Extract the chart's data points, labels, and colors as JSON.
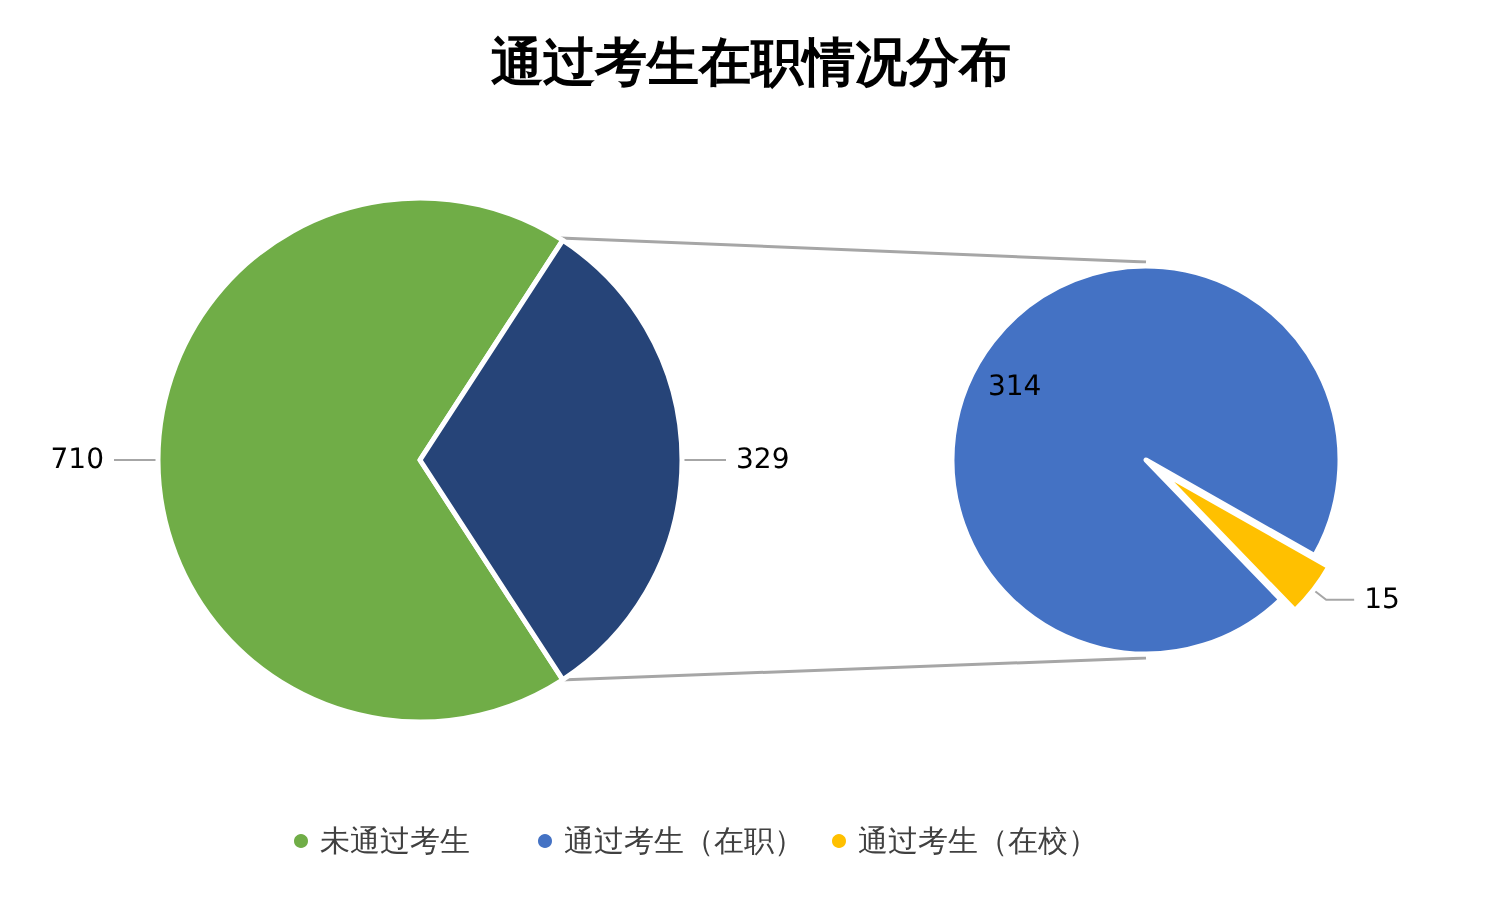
{
  "chart_data": [
    {
      "type": "pie",
      "title": "通过考生在职情况分布",
      "categories": [
        "未通过考生",
        null
      ],
      "values": [
        710,
        329
      ],
      "colors": [
        "#70ad47",
        "#264478"
      ],
      "data_labels": true,
      "legend": "bottom"
    },
    {
      "type": "pie",
      "categories": [
        "通过考生（在职）",
        "通过考生（在校）"
      ],
      "values": [
        314,
        15
      ],
      "colors": [
        "#4472c4",
        "#ffc000"
      ],
      "data_labels": true,
      "legend": "bottom"
    }
  ]
}
